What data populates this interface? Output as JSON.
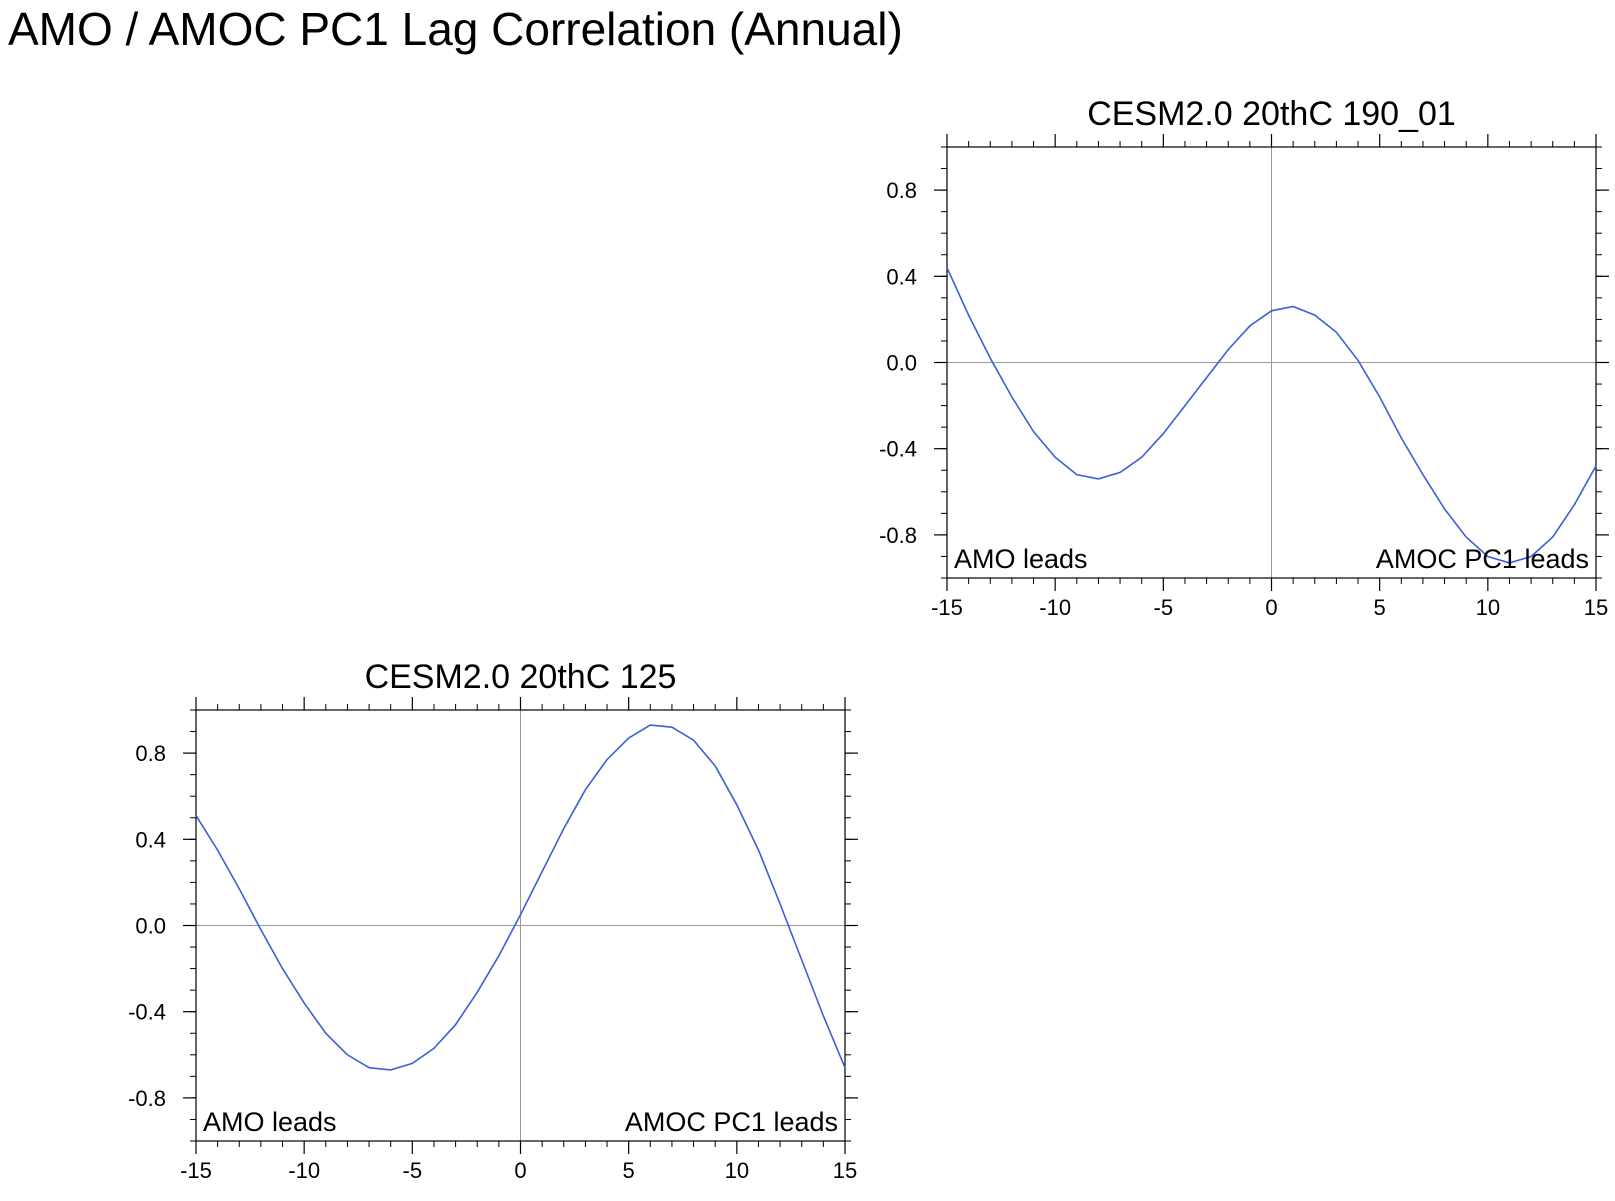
{
  "title": "AMO / AMOC PC1 Lag Correlation (Annual)",
  "colors": {
    "line": "#3a5fd9",
    "axis": "#000000",
    "refline": "#999999"
  },
  "chart_data": [
    {
      "type": "line",
      "title": "CESM2.0 20thC 190_01",
      "xlabel": "",
      "ylabel": "",
      "xlim": [
        -15,
        15
      ],
      "ylim": [
        -1.0,
        1.0
      ],
      "xticks": [
        -15,
        -10,
        -5,
        0,
        5,
        10,
        15
      ],
      "xtick_labels": [
        "-15",
        "-10",
        "-5",
        "0",
        "5",
        "10",
        "15"
      ],
      "yticks": [
        0.8,
        0.4,
        0.0,
        -0.4,
        -0.8
      ],
      "ytick_labels": [
        "0.8",
        "0.4",
        "0.0",
        "-0.4",
        "-0.8"
      ],
      "annotations": {
        "left": "AMO leads",
        "right": "AMOC PC1 leads"
      },
      "grid": false,
      "series": [
        {
          "name": "lag correlation",
          "x": [
            -15,
            -14,
            -13,
            -12,
            -11,
            -10,
            -9,
            -8,
            -7,
            -6,
            -5,
            -4,
            -3,
            -2,
            -1,
            0,
            1,
            2,
            3,
            4,
            5,
            6,
            7,
            8,
            9,
            10,
            11,
            12,
            13,
            14,
            15
          ],
          "values": [
            0.44,
            0.22,
            0.02,
            -0.16,
            -0.32,
            -0.44,
            -0.52,
            -0.54,
            -0.51,
            -0.44,
            -0.33,
            -0.2,
            -0.07,
            0.06,
            0.17,
            0.24,
            0.26,
            0.22,
            0.14,
            0.01,
            -0.16,
            -0.35,
            -0.52,
            -0.68,
            -0.81,
            -0.9,
            -0.93,
            -0.9,
            -0.81,
            -0.66,
            -0.48
          ]
        }
      ]
    },
    {
      "type": "line",
      "title": "CESM2.0 20thC 125",
      "xlabel": "",
      "ylabel": "",
      "xlim": [
        -15,
        15
      ],
      "ylim": [
        -1.0,
        1.0
      ],
      "xticks": [
        -15,
        -10,
        -5,
        0,
        5,
        10,
        15
      ],
      "xtick_labels": [
        "-15",
        "-10",
        "-5",
        "0",
        "5",
        "10",
        "15"
      ],
      "yticks": [
        0.8,
        0.4,
        0.0,
        -0.4,
        -0.8
      ],
      "ytick_labels": [
        "0.8",
        "0.4",
        "0.0",
        "-0.4",
        "-0.8"
      ],
      "annotations": {
        "left": "AMO leads",
        "right": "AMOC PC1 leads"
      },
      "grid": false,
      "series": [
        {
          "name": "lag correlation",
          "x": [
            -15,
            -14,
            -13,
            -12,
            -11,
            -10,
            -9,
            -8,
            -7,
            -6,
            -5,
            -4,
            -3,
            -2,
            -1,
            0,
            1,
            2,
            3,
            4,
            5,
            6,
            7,
            8,
            9,
            10,
            11,
            12,
            13,
            14,
            15
          ],
          "values": [
            0.51,
            0.35,
            0.17,
            -0.02,
            -0.2,
            -0.36,
            -0.5,
            -0.6,
            -0.66,
            -0.67,
            -0.64,
            -0.57,
            -0.46,
            -0.31,
            -0.14,
            0.05,
            0.25,
            0.45,
            0.63,
            0.77,
            0.87,
            0.93,
            0.92,
            0.86,
            0.74,
            0.56,
            0.35,
            0.1,
            -0.16,
            -0.42,
            -0.66
          ]
        }
      ]
    }
  ]
}
